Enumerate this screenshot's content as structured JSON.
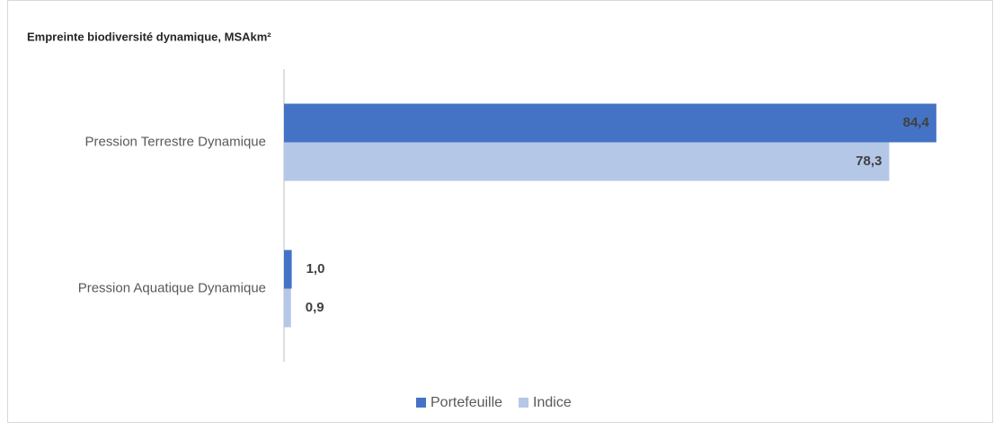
{
  "chart_data": {
    "type": "hbar",
    "title": "Empreinte biodiversité dynamique, MSAkm²",
    "categories": [
      "Pression Terrestre Dynamique",
      "Pression Aquatique Dynamique"
    ],
    "series": [
      {
        "name": "Portefeuille",
        "color": "#4472c4",
        "values": [
          84.4,
          1.0
        ],
        "value_labels": [
          "84,4",
          "1,0"
        ]
      },
      {
        "name": "Indice",
        "color": "#b4c7e7",
        "values": [
          78.3,
          0.9
        ],
        "value_labels": [
          "78,3",
          "0,9"
        ]
      }
    ],
    "xlim": [
      0,
      90
    ],
    "legend": "bottom"
  }
}
